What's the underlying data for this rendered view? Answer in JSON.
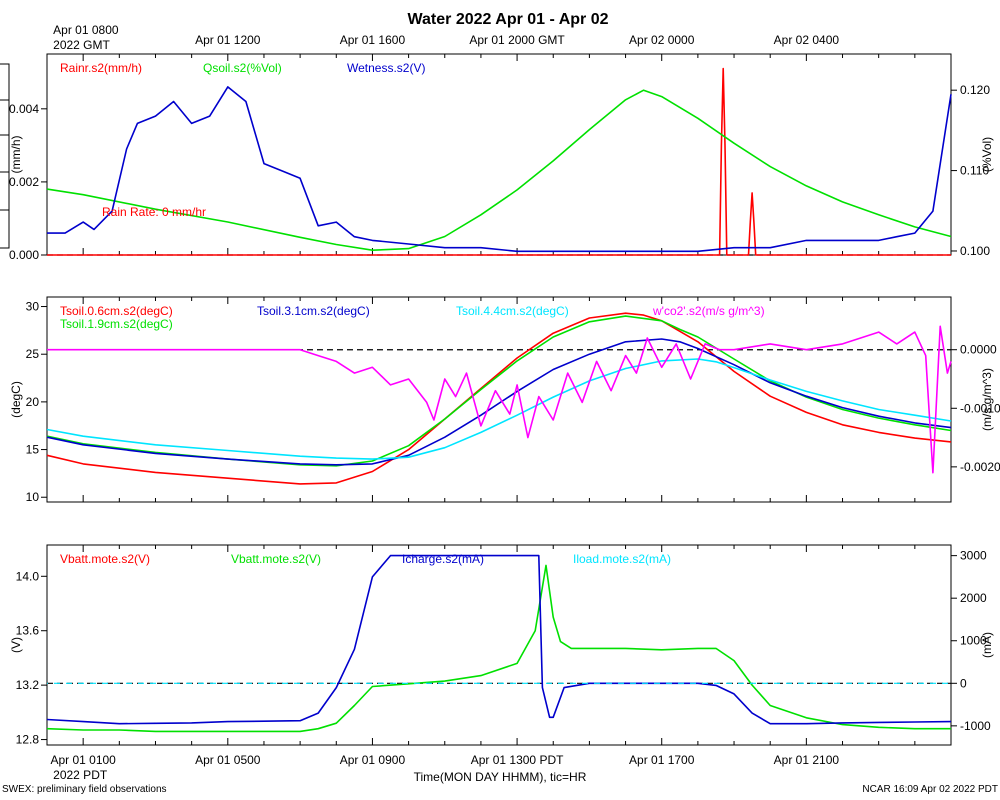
{
  "title": "Water 2022 Apr 01 - Apr 02",
  "top_axis": {
    "labels": [
      {
        "h": 0,
        "l1": "Apr 01 0800",
        "l2": "2022 GMT"
      },
      {
        "h": 4,
        "l1": "Apr 01 1200"
      },
      {
        "h": 8,
        "l1": "Apr 01 1600"
      },
      {
        "h": 12,
        "l1": "Apr 01 2000 GMT"
      },
      {
        "h": 16,
        "l1": "Apr 02 0000"
      },
      {
        "h": 20,
        "l1": "Apr 02 0400"
      }
    ]
  },
  "bottom_axis": {
    "labels": [
      {
        "h": 0,
        "l1": "Apr 01 0100",
        "l2": "2022 PDT"
      },
      {
        "h": 4,
        "l1": "Apr 01 0500"
      },
      {
        "h": 8,
        "l1": "Apr 01 0900"
      },
      {
        "h": 12,
        "l1": "Apr 01 1300 PDT"
      },
      {
        "h": 16,
        "l1": "Apr 01 1700"
      },
      {
        "h": 20,
        "l1": "Apr 01 2100"
      }
    ],
    "xlabel": "Time(MON DAY HHMM), tic=HR"
  },
  "footer": {
    "left": "SWEX: preliminary field observations",
    "right": "NCAR 16:09 Apr 02 2022 PDT"
  },
  "colors": {
    "red": "#ff0000",
    "green": "#00e000",
    "blue": "#0000cc",
    "cyan": "#00e5ff",
    "magenta": "#ff00ff"
  },
  "chart_data": [
    {
      "type": "line",
      "title": "Water panel",
      "x_unit": "hours since Apr 01 0800 GMT",
      "xlim": [
        -1,
        24
      ],
      "left_axis": {
        "label": "(mm/h)",
        "range": [
          0,
          0.0055
        ],
        "ticks": [
          "0.000",
          "0.002",
          "0.004"
        ],
        "tick_values": [
          0,
          0.002,
          0.004
        ]
      },
      "right_axis": {
        "label": "(%Vol)",
        "range": [
          0.0995,
          0.1245
        ],
        "ticks": [
          "0.100",
          "0.110",
          "0.120"
        ],
        "tick_values": [
          0.1,
          0.11,
          0.12
        ]
      },
      "legend": [
        {
          "text": "Rainr.s2(mm/h)",
          "color": "red"
        },
        {
          "text": "Qsoil.s2(%Vol)",
          "color": "green"
        },
        {
          "text": "Wetness.s2(V)",
          "color": "blue"
        }
      ],
      "annotation": {
        "text": "Rain Rate: 0 mm/hr",
        "color": "red"
      },
      "reference_line": {
        "axis": "left",
        "value": 0
      },
      "series": [
        {
          "name": "Rainr.s2",
          "color": "red",
          "axis": "left",
          "x": [
            -1,
            17.6,
            17.65,
            17.7,
            17.75,
            17.8,
            18.4,
            18.45,
            18.5,
            18.55,
            18.6,
            24
          ],
          "y": [
            0,
            0,
            0.003,
            0.0051,
            0.003,
            0,
            0,
            0.0009,
            0.0017,
            0.0009,
            0,
            0
          ]
        },
        {
          "name": "Qsoil.s2",
          "color": "green",
          "axis": "right",
          "x": [
            -1,
            0,
            2,
            4,
            6,
            7,
            8,
            9,
            10,
            11,
            12,
            13,
            14,
            15,
            15.5,
            16,
            17,
            18,
            19,
            20,
            21,
            22,
            23,
            24
          ],
          "y": [
            0.1077,
            0.107,
            0.1052,
            0.1036,
            0.1017,
            0.1008,
            0.1001,
            0.1003,
            0.1018,
            0.1045,
            0.1076,
            0.1112,
            0.1151,
            0.1188,
            0.12,
            0.1192,
            0.1165,
            0.1134,
            0.1105,
            0.1081,
            0.1061,
            0.1045,
            0.103,
            0.1018
          ]
        },
        {
          "name": "Wetness.s2",
          "color": "blue",
          "axis": "left",
          "x": [
            -1,
            -0.5,
            0,
            0.3,
            0.8,
            1.2,
            1.5,
            2,
            2.5,
            3,
            3.5,
            4,
            4.5,
            5,
            5.5,
            6,
            6.5,
            7,
            7.5,
            8,
            9,
            10,
            11,
            12,
            13,
            14,
            15,
            16,
            17,
            18,
            19,
            20,
            21,
            22,
            22.5,
            23,
            23.5,
            24
          ],
          "y": [
            0.0006,
            0.0006,
            0.0009,
            0.0007,
            0.0012,
            0.0029,
            0.0036,
            0.0038,
            0.0042,
            0.0036,
            0.0038,
            0.0046,
            0.0042,
            0.0025,
            0.0023,
            0.0021,
            0.0008,
            0.0009,
            0.0005,
            0.0004,
            0.0003,
            0.0002,
            0.0002,
            0.0001,
            0.0001,
            0.0001,
            0.0001,
            0.0001,
            0.0001,
            0.0002,
            0.0002,
            0.0004,
            0.0004,
            0.0004,
            0.0005,
            0.0006,
            0.0012,
            0.0044
          ]
        }
      ]
    },
    {
      "type": "line",
      "title": "Soil temperature panel",
      "x_unit": "hours since Apr 01 0800 GMT",
      "xlim": [
        -1,
        24
      ],
      "left_axis": {
        "label": "(degC)",
        "range": [
          9.5,
          31
        ],
        "ticks": [
          "10",
          "15",
          "20",
          "25",
          "30"
        ],
        "tick_values": [
          10,
          15,
          20,
          25,
          30
        ]
      },
      "right_axis": {
        "label": "(m/s g/m^3)",
        "range": [
          -0.0026,
          0.0009
        ],
        "ticks": [
          "-0.0020",
          "-0.0010",
          "0.0000"
        ],
        "tick_values": [
          -0.002,
          -0.001,
          0
        ]
      },
      "legend": [
        {
          "text": "Tsoil.0.6cm.s2(degC)",
          "color": "red"
        },
        {
          "text": "Tsoil.1.9cm.s2(degC)",
          "color": "green"
        },
        {
          "text": "Tsoil.3.1cm.s2(degC)",
          "color": "blue"
        },
        {
          "text": "Tsoil.4.4cm.s2(degC)",
          "color": "cyan"
        },
        {
          "text": "w'co2'.s2(m/s g/m^3)",
          "color": "magenta"
        }
      ],
      "reference_line": {
        "axis": "right",
        "value": 0
      },
      "series": [
        {
          "name": "Tsoil.0.6cm.s2",
          "color": "red",
          "axis": "left",
          "x": [
            -1,
            0,
            2,
            4,
            6,
            7,
            8,
            9,
            10,
            11,
            12,
            13,
            14,
            15,
            15.5,
            16,
            17,
            18,
            19,
            20,
            21,
            22,
            23,
            24
          ],
          "y": [
            14.4,
            13.5,
            12.6,
            12,
            11.4,
            11.5,
            12.7,
            15,
            18.2,
            21.4,
            24.6,
            27.2,
            28.8,
            29.3,
            29.1,
            28.5,
            26.3,
            23.2,
            20.6,
            18.9,
            17.6,
            16.8,
            16.2,
            15.8
          ]
        },
        {
          "name": "Tsoil.1.9cm.s2",
          "color": "green",
          "axis": "left",
          "x": [
            -1,
            0,
            2,
            4,
            6,
            7,
            8,
            9,
            10,
            11,
            12,
            13,
            14,
            15,
            16,
            16.5,
            17,
            18,
            19,
            20,
            21,
            22,
            23,
            24
          ],
          "y": [
            16.4,
            15.6,
            14.7,
            14,
            13.4,
            13.3,
            13.8,
            15.4,
            18.2,
            21.3,
            24.3,
            26.8,
            28.4,
            29,
            28.5,
            27.6,
            26.8,
            24.5,
            22.2,
            20.5,
            19.2,
            18.3,
            17.6,
            17
          ]
        },
        {
          "name": "Tsoil.3.1cm.s2",
          "color": "blue",
          "axis": "left",
          "x": [
            -1,
            0,
            2,
            4,
            6,
            7,
            8,
            9,
            10,
            11,
            12,
            13,
            14,
            15,
            16,
            16.5,
            17,
            18,
            19,
            20,
            21,
            22,
            23,
            24
          ],
          "y": [
            16.3,
            15.5,
            14.6,
            14,
            13.5,
            13.4,
            13.5,
            14.4,
            16.3,
            18.6,
            21.1,
            23.4,
            25,
            26.3,
            26.6,
            26.3,
            25.6,
            23.9,
            22,
            20.6,
            19.4,
            18.5,
            17.8,
            17.3
          ]
        },
        {
          "name": "Tsoil.4.4cm.s2",
          "color": "cyan",
          "axis": "left",
          "x": [
            -1,
            0,
            2,
            4,
            6,
            7,
            8,
            9,
            10,
            11,
            12,
            13,
            14,
            15,
            16,
            17,
            17.5,
            18,
            19,
            20,
            21,
            22,
            23,
            24
          ],
          "y": [
            17.1,
            16.4,
            15.5,
            14.9,
            14.3,
            14.1,
            14,
            14.2,
            15.2,
            16.8,
            18.6,
            20.5,
            22.2,
            23.5,
            24.3,
            24.5,
            24.2,
            23.6,
            22.3,
            21.1,
            20.1,
            19.2,
            18.6,
            18
          ]
        },
        {
          "name": "w'co2'.s2",
          "color": "magenta",
          "axis": "right",
          "x": [
            -1,
            1,
            3,
            5,
            6,
            6.5,
            7,
            7.5,
            8,
            8.5,
            9,
            9.5,
            9.7,
            10,
            10.3,
            10.6,
            11,
            11.4,
            11.8,
            12,
            12.3,
            12.6,
            13,
            13.4,
            13.8,
            14.2,
            14.6,
            15,
            15.3,
            15.6,
            16,
            16.4,
            16.8,
            17.2,
            17.6,
            18,
            19,
            20,
            21,
            21.5,
            22,
            22.5,
            23,
            23.3,
            23.5,
            23.7,
            23.9,
            24
          ],
          "y": [
            0,
            0,
            0,
            0,
            0,
            -0.0001,
            -0.0002,
            -0.0004,
            -0.0003,
            -0.0006,
            -0.0005,
            -0.0009,
            -0.0012,
            -0.0005,
            -0.0008,
            -0.0004,
            -0.0013,
            -0.0007,
            -0.0011,
            -0.0006,
            -0.0015,
            -0.0008,
            -0.0012,
            -0.0004,
            -0.0009,
            -0.0002,
            -0.0007,
            -0.0001,
            -0.0004,
            0.0002,
            -0.0003,
            0.0001,
            -0.0005,
            0.0001,
            0,
            0,
            0.0001,
            0,
            0.0001,
            0.0002,
            0.0003,
            0.0001,
            0.0003,
            -0.0001,
            -0.0021,
            0.0004,
            -0.0004,
            -0.0002
          ]
        }
      ]
    },
    {
      "type": "line",
      "title": "Power panel",
      "x_unit": "hours since Apr 01 0800 GMT",
      "xlim": [
        -1,
        24
      ],
      "left_axis": {
        "label": "(V)",
        "range": [
          12.76,
          14.23
        ],
        "ticks": [
          "12.8",
          "13.2",
          "13.6",
          "14.0"
        ],
        "tick_values": [
          12.8,
          13.2,
          13.6,
          14.0
        ]
      },
      "right_axis": {
        "label": "(mA)",
        "range": [
          -1450,
          3250
        ],
        "ticks": [
          "-1000",
          "0",
          "1000",
          "2000",
          "3000"
        ],
        "tick_values": [
          -1000,
          0,
          1000,
          2000,
          3000
        ]
      },
      "legend": [
        {
          "text": "Vbatt.mote.s2(V)",
          "color": "red"
        },
        {
          "text": "Vbatt.mote.s2(V)",
          "color": "green"
        },
        {
          "text": "Icharge.s2(mA)",
          "color": "blue"
        },
        {
          "text": "Iload.mote.s2(mA)",
          "color": "cyan"
        }
      ],
      "reference_line": {
        "axis": "right",
        "value": 0
      },
      "series": [
        {
          "name": "Vbatt.mote.s2",
          "color": "green",
          "axis": "left",
          "x": [
            -1,
            0,
            1,
            2,
            3,
            4,
            5,
            6,
            6.5,
            7,
            7.5,
            8,
            9,
            10,
            11,
            12,
            12.5,
            12.8,
            13,
            13.2,
            13.5,
            14,
            15,
            16,
            17,
            17.5,
            18,
            18.5,
            19,
            20,
            21,
            22,
            23,
            24
          ],
          "y": [
            12.88,
            12.87,
            12.87,
            12.86,
            12.86,
            12.86,
            12.86,
            12.86,
            12.88,
            12.92,
            13.05,
            13.19,
            13.21,
            13.23,
            13.27,
            13.36,
            13.6,
            14.08,
            13.7,
            13.52,
            13.47,
            13.47,
            13.47,
            13.46,
            13.47,
            13.47,
            13.38,
            13.2,
            13.05,
            12.96,
            12.91,
            12.89,
            12.88,
            12.88
          ]
        },
        {
          "name": "Icharge.s2",
          "color": "blue",
          "axis": "right",
          "x": [
            -1,
            0,
            1,
            2,
            3,
            4,
            5,
            6,
            6.5,
            7,
            7.5,
            8,
            8.5,
            9,
            10,
            11,
            12,
            12.3,
            12.6,
            12.7,
            12.9,
            13,
            13.3,
            14,
            15,
            16,
            17,
            17.5,
            18,
            18.5,
            19,
            20,
            21,
            22,
            23,
            24
          ],
          "y": [
            -850,
            -900,
            -950,
            -940,
            -930,
            -900,
            -890,
            -880,
            -700,
            -100,
            800,
            2500,
            3000,
            3000,
            3000,
            3000,
            3000,
            3000,
            3000,
            -100,
            -800,
            -800,
            -100,
            0,
            0,
            0,
            0,
            -50,
            -250,
            -700,
            -950,
            -950,
            -930,
            -920,
            -910,
            -900
          ]
        }
      ]
    }
  ]
}
